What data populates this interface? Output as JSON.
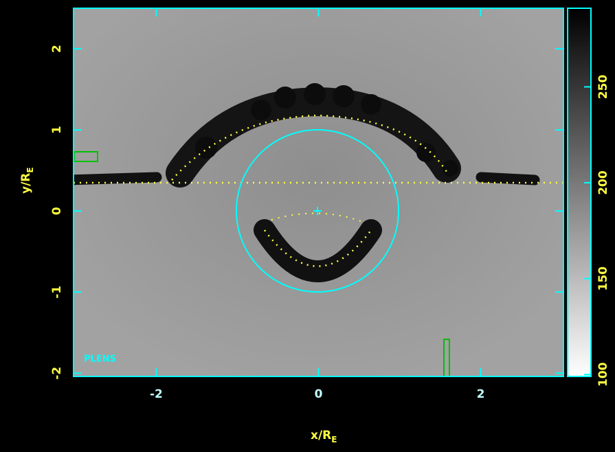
{
  "chart_data": {
    "type": "image",
    "xlabel": "x/R",
    "xlabel_sub": "E",
    "ylabel": "y/R",
    "ylabel_sub": "E",
    "xlim": [
      -3.02,
      3.02
    ],
    "xticks": [
      -2,
      0,
      2
    ],
    "ylim": [
      -2.04,
      2.5
    ],
    "yticks": [
      -2,
      -1,
      0,
      1,
      2
    ],
    "colorbar": {
      "clim": [
        99,
        291
      ],
      "ticks": [
        100,
        150,
        200,
        250
      ]
    },
    "annotation": "PLENS",
    "axis_color": "#00ffff"
  }
}
